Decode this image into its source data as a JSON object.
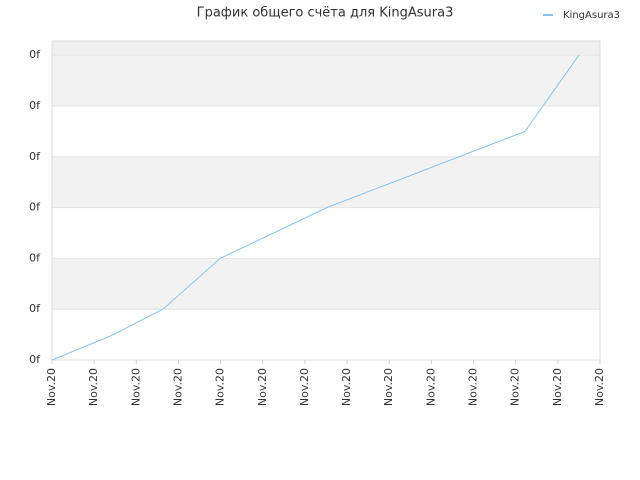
{
  "chart_data": {
    "type": "line",
    "title": "График общего счёта для KingAsura3",
    "x": [
      0,
      1.38,
      2.63,
      3.99,
      6.52,
      11.22,
      12.5
    ],
    "series": [
      {
        "name": "KingAsura3",
        "color": "#88c4ee",
        "values": [
          0,
          0.47,
          1,
          2,
          3,
          4.5,
          6
        ]
      }
    ],
    "xlim": [
      0,
      13
    ],
    "xticks": [
      {
        "value": 0,
        "label": "Nov.20"
      },
      {
        "value": 1,
        "label": "Nov.20"
      },
      {
        "value": 2,
        "label": "Nov.20"
      },
      {
        "value": 3,
        "label": "Nov.20"
      },
      {
        "value": 4,
        "label": "Nov.20"
      },
      {
        "value": 5,
        "label": "Nov.20"
      },
      {
        "value": 6,
        "label": "Nov.20"
      },
      {
        "value": 7,
        "label": "Nov.20"
      },
      {
        "value": 8,
        "label": "Nov.20"
      },
      {
        "value": 9,
        "label": "Nov.20"
      },
      {
        "value": 10,
        "label": "Nov.20"
      },
      {
        "value": 11,
        "label": "Nov.20"
      },
      {
        "value": 12,
        "label": "Nov.20"
      },
      {
        "value": 13,
        "label": "Nov.20"
      }
    ],
    "ylim": [
      0,
      6.28
    ],
    "yticks": [
      {
        "value": 0,
        "label": "0f"
      },
      {
        "value": 1,
        "label": "0f"
      },
      {
        "value": 2,
        "label": "0f"
      },
      {
        "value": 3,
        "label": "0f"
      },
      {
        "value": 4,
        "label": "0f"
      },
      {
        "value": 5,
        "label": "0f"
      },
      {
        "value": 6,
        "label": "0f"
      }
    ],
    "grid": true,
    "legend": "top-right"
  }
}
